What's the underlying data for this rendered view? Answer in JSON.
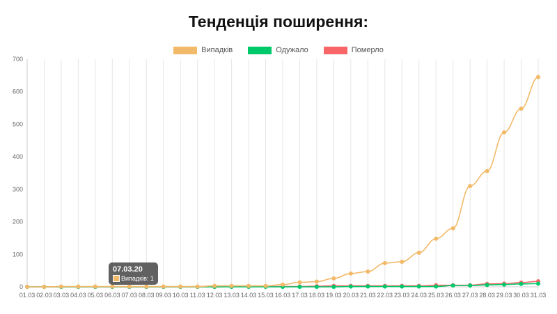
{
  "chart_data": {
    "type": "line",
    "title": "Тенденція поширення:",
    "categories": [
      "01.03",
      "02.03",
      "03.03",
      "04.03",
      "05.03",
      "06.03",
      "07.03",
      "08.03",
      "09.03",
      "10.03",
      "11.03",
      "12.03",
      "13.03",
      "14.03",
      "15.03",
      "16.03",
      "17.03",
      "18.03",
      "19.03",
      "20.03",
      "21.03",
      "22.03",
      "23.03",
      "24.03",
      "25.03",
      "26.03",
      "27.03",
      "28.03",
      "29.03",
      "30.03",
      "31.03"
    ],
    "series": [
      {
        "name": "Випадків",
        "color": "#f2b968",
        "values": [
          0,
          0,
          1,
          1,
          1,
          1,
          1,
          1,
          1,
          1,
          1,
          3,
          3,
          3,
          3,
          7,
          14,
          16,
          26,
          41,
          47,
          73,
          77,
          105,
          148,
          180,
          310,
          356,
          475,
          548,
          645
        ]
      },
      {
        "name": "Одужало",
        "color": "#00c96b",
        "values": [
          0,
          0,
          0,
          0,
          0,
          0,
          0,
          0,
          0,
          0,
          0,
          0,
          0,
          0,
          0,
          0,
          0,
          0,
          0,
          1,
          1,
          1,
          1,
          1,
          1,
          4,
          4,
          6,
          7,
          9,
          10
        ]
      },
      {
        "name": "Померло",
        "color": "#f86668",
        "values": [
          0,
          0,
          0,
          0,
          0,
          0,
          0,
          0,
          0,
          0,
          0,
          0,
          1,
          1,
          1,
          1,
          1,
          2,
          3,
          3,
          3,
          3,
          3,
          3,
          5,
          5,
          5,
          9,
          10,
          13,
          17
        ]
      }
    ],
    "ylim": [
      0,
      700
    ],
    "yticks": [
      0,
      100,
      200,
      300,
      400,
      500,
      600,
      700
    ],
    "grid": "vertical",
    "legend": "top",
    "tooltip": {
      "title": "07.03.20",
      "label": "Випадків: 1"
    }
  }
}
